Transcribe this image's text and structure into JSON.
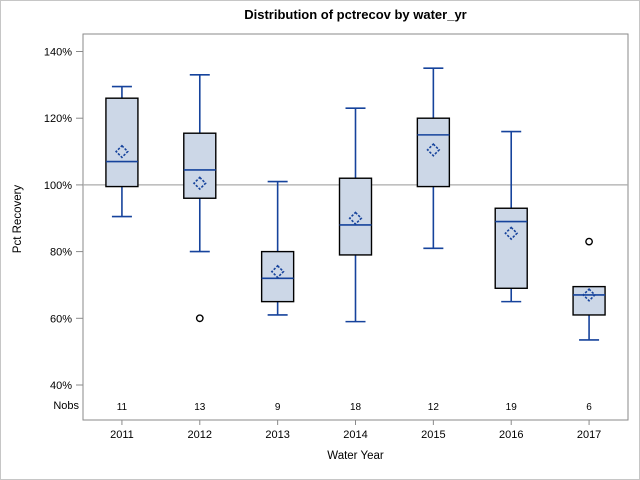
{
  "figure": {
    "background": "#ffffff",
    "border_color": "#c6c6c6"
  },
  "chart_data": {
    "type": "box",
    "title": "Distribution of pctrecov by water_yr",
    "xlabel": "Water Year",
    "ylabel": "Pct Recovery",
    "nobs_label": "Nobs",
    "ylim": [
      36,
      146
    ],
    "yticks": [
      {
        "value": 140,
        "label": "140%"
      },
      {
        "value": 120,
        "label": "120%"
      },
      {
        "value": 100,
        "label": "100%"
      },
      {
        "value": 80,
        "label": "80%"
      },
      {
        "value": 60,
        "label": "60%"
      },
      {
        "value": 40,
        "label": "40%"
      }
    ],
    "reference_line": 100,
    "grid": false,
    "legend": "none",
    "categories": [
      "2011",
      "2012",
      "2013",
      "2014",
      "2015",
      "2016",
      "2017"
    ],
    "nobs": [
      11,
      13,
      9,
      18,
      12,
      19,
      6
    ],
    "boxes": [
      {
        "category": "2011",
        "n": 11,
        "whisker_low": 90.5,
        "q1": 99.5,
        "median": 107,
        "q3": 126,
        "whisker_high": 129.5,
        "mean": 110,
        "outliers": []
      },
      {
        "category": "2012",
        "n": 13,
        "whisker_low": 80,
        "q1": 96,
        "median": 104.5,
        "q3": 115.5,
        "whisker_high": 133,
        "mean": 100.5,
        "outliers": [
          60
        ]
      },
      {
        "category": "2013",
        "n": 9,
        "whisker_low": 61,
        "q1": 65,
        "median": 72,
        "q3": 80,
        "whisker_high": 101,
        "mean": 74,
        "outliers": []
      },
      {
        "category": "2014",
        "n": 18,
        "whisker_low": 59,
        "q1": 79,
        "median": 88,
        "q3": 102,
        "whisker_high": 123,
        "mean": 90,
        "outliers": []
      },
      {
        "category": "2015",
        "n": 12,
        "whisker_low": 81,
        "q1": 99.5,
        "median": 115,
        "q3": 120,
        "whisker_high": 135,
        "mean": 110.5,
        "outliers": []
      },
      {
        "category": "2016",
        "n": 19,
        "whisker_low": 65,
        "q1": 69,
        "median": 89,
        "q3": 93,
        "whisker_high": 116,
        "mean": 85.5,
        "outliers": []
      },
      {
        "category": "2017",
        "n": 6,
        "whisker_low": 53.5,
        "q1": 61,
        "median": 67,
        "q3": 69.5,
        "whisker_high": 69.5,
        "mean": 67,
        "outliers": [
          83
        ]
      }
    ],
    "colors": {
      "box_fill": "#ccd7e7",
      "box_border": "#000000",
      "whisker": "#16439c",
      "median": "#16439c",
      "mean_marker": "#16439c",
      "outlier": "#000000",
      "reference_line": "#ababab",
      "axis": "#8a8a8a",
      "text": "#000000"
    }
  }
}
